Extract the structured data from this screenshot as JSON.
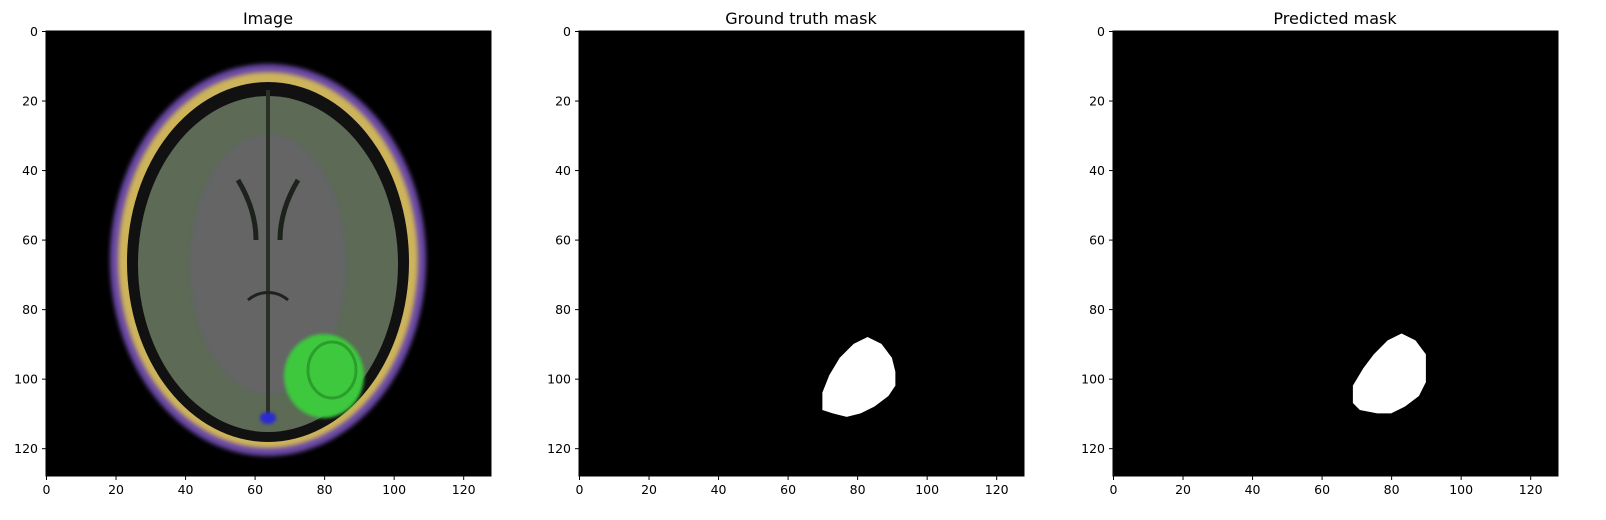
{
  "figure": {
    "panels": [
      {
        "id": "image",
        "title": "Image",
        "kind": "mri-rgb"
      },
      {
        "id": "ground-truth",
        "title": "Ground truth mask",
        "kind": "binary-mask"
      },
      {
        "id": "predicted",
        "title": "Predicted mask",
        "kind": "binary-mask"
      }
    ]
  },
  "colors": {
    "background": "#000000",
    "mask": "#ffffff",
    "tumor": "#3ec83e",
    "skull": "#cdb45a",
    "scalp": "#6a4aa6",
    "brain": "#5c6a56"
  },
  "chart_data": [
    {
      "type": "heatmap",
      "title": "Image",
      "xlim": [
        0,
        128
      ],
      "ylim": [
        128,
        0
      ],
      "xticks": [
        0,
        20,
        40,
        60,
        80,
        100,
        120
      ],
      "yticks": [
        0,
        20,
        40,
        60,
        80,
        100,
        120
      ],
      "grid": false,
      "regions": [
        {
          "name": "head",
          "center": [
            64,
            66
          ],
          "radii": [
            45,
            56
          ]
        },
        {
          "name": "brain",
          "center": [
            64,
            67
          ],
          "radii": [
            37,
            48
          ]
        },
        {
          "name": "tumor",
          "center": [
            80,
            102
          ],
          "radii": [
            11,
            11
          ]
        }
      ]
    },
    {
      "type": "heatmap",
      "title": "Ground truth mask",
      "xlim": [
        0,
        128
      ],
      "ylim": [
        128,
        0
      ],
      "xticks": [
        0,
        20,
        40,
        60,
        80,
        100,
        120
      ],
      "yticks": [
        0,
        20,
        40,
        60,
        80,
        100,
        120
      ],
      "grid": false,
      "mask_outline": [
        [
          70,
          109
        ],
        [
          70,
          104
        ],
        [
          72,
          99
        ],
        [
          75,
          94
        ],
        [
          79,
          90
        ],
        [
          83,
          88
        ],
        [
          87,
          90
        ],
        [
          90,
          94
        ],
        [
          91,
          98
        ],
        [
          91,
          102
        ],
        [
          89,
          105
        ],
        [
          85,
          108
        ],
        [
          81,
          110
        ],
        [
          77,
          111
        ],
        [
          73,
          110
        ]
      ]
    },
    {
      "type": "heatmap",
      "title": "Predicted mask",
      "xlim": [
        0,
        128
      ],
      "ylim": [
        128,
        0
      ],
      "xticks": [
        0,
        20,
        40,
        60,
        80,
        100,
        120
      ],
      "yticks": [
        0,
        20,
        40,
        60,
        80,
        100,
        120
      ],
      "grid": false,
      "mask_outline": [
        [
          69,
          107
        ],
        [
          69,
          102
        ],
        [
          72,
          97
        ],
        [
          75,
          93
        ],
        [
          79,
          89
        ],
        [
          83,
          87
        ],
        [
          87,
          89
        ],
        [
          90,
          93
        ],
        [
          90,
          101
        ],
        [
          88,
          105
        ],
        [
          84,
          108
        ],
        [
          80,
          110
        ],
        [
          76,
          110
        ],
        [
          71,
          109
        ]
      ]
    }
  ]
}
